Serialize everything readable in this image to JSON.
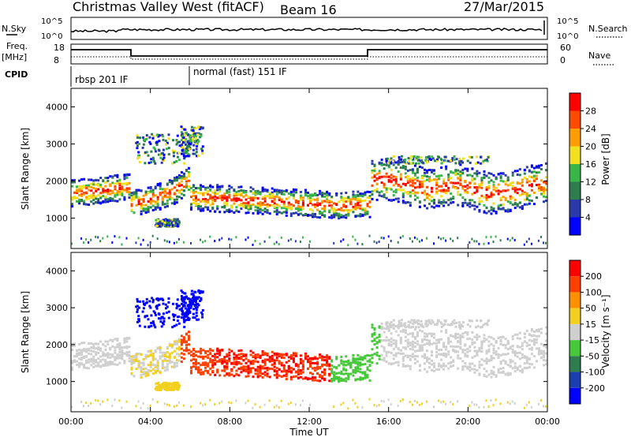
{
  "header": {
    "title": "Christmas Valley West (fitACF)",
    "beam": "Beam 16",
    "date": "27/Mar/2015"
  },
  "top_panels": {
    "nsky_label": "N.Sky",
    "nsearch_label": "N.Search",
    "nsky_ticks": [
      "10^5",
      "10^0"
    ],
    "nsky_right_ticks": [
      "10^5",
      "10^0"
    ],
    "freq_label": "Freq.",
    "freq_unit": "[MHz]",
    "freq_ticks": [
      "18",
      "8"
    ],
    "nave_label": "Nave",
    "nave_ticks": [
      "60",
      "0"
    ],
    "cpid_label": "CPID",
    "cpid_modes": [
      {
        "label": "rbsp 201 IF",
        "start_hour": 0
      },
      {
        "label": "normal (fast) 151 IF",
        "start_hour": 6
      }
    ]
  },
  "chart_data": [
    {
      "type": "heatmap",
      "name": "power",
      "xlabel": "",
      "ylabel": "Slant Range [km]",
      "xlim": [
        0,
        24
      ],
      "ylim": [
        180,
        4500
      ],
      "y_ticks": [
        "1000",
        "2000",
        "3000",
        "4000"
      ],
      "colorbar": {
        "label": "Power [dB]",
        "ticks": [
          "4",
          "8",
          "12",
          "16",
          "20",
          "24",
          "28"
        ],
        "colors": [
          "#0000ff",
          "#2a3aa8",
          "#2e7d4f",
          "#39b54a",
          "#f0e020",
          "#ff9d00",
          "#ff4a00",
          "#ff0000"
        ]
      }
    },
    {
      "type": "heatmap",
      "name": "velocity",
      "xlabel": "Time UT",
      "ylabel": "Slant Range [km]",
      "xlim": [
        0,
        24
      ],
      "ylim": [
        180,
        4500
      ],
      "x_ticks": [
        "00:00",
        "04:00",
        "08:00",
        "12:00",
        "16:00",
        "20:00",
        "00:00"
      ],
      "y_ticks": [
        "1000",
        "2000",
        "3000",
        "4000"
      ],
      "colorbar": {
        "label": "Velocity [m s⁻¹]",
        "ticks": [
          "200",
          "100",
          "50",
          "15",
          "-15",
          "-50",
          "-100",
          "-200"
        ],
        "colors": [
          "#0000ff",
          "#1b3fb0",
          "#2e7d4f",
          "#46c83a",
          "#cfcfcf",
          "#f2d020",
          "#ff9000",
          "#ff4000",
          "#ff0000"
        ]
      }
    }
  ]
}
